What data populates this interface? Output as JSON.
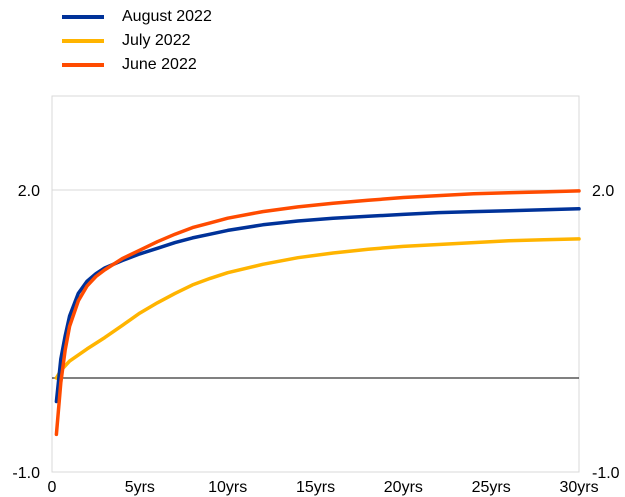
{
  "chart_data": {
    "type": "line",
    "title": "",
    "xlabel": "",
    "ylabel": "",
    "xlim": [
      0,
      30
    ],
    "ylim": [
      -1.0,
      3.0
    ],
    "x_tick_labels": [
      {
        "x": 0,
        "label": "0"
      },
      {
        "x": 5,
        "label": "5yrs"
      },
      {
        "x": 10,
        "label": "10yrs"
      },
      {
        "x": 15,
        "label": "15yrs"
      },
      {
        "x": 20,
        "label": "20yrs"
      },
      {
        "x": 25,
        "label": "25yrs"
      },
      {
        "x": 30,
        "label": "30yrs"
      }
    ],
    "y_tick_labels": [
      {
        "y": 2.0,
        "label": "2.0"
      },
      {
        "y": -1.0,
        "label": "-1.0"
      }
    ],
    "zero_line": 0,
    "legend_position": "top-left",
    "series": [
      {
        "name": "August 2022",
        "color": "#003299",
        "x": [
          0.25,
          0.5,
          0.75,
          1,
          1.5,
          2,
          2.5,
          3,
          4,
          5,
          6,
          7,
          8,
          9,
          10,
          12,
          14,
          16,
          18,
          20,
          22,
          24,
          26,
          28,
          30
        ],
        "y": [
          -0.25,
          0.2,
          0.45,
          0.66,
          0.9,
          1.03,
          1.11,
          1.17,
          1.25,
          1.32,
          1.38,
          1.44,
          1.49,
          1.53,
          1.57,
          1.63,
          1.67,
          1.7,
          1.72,
          1.74,
          1.76,
          1.77,
          1.78,
          1.79,
          1.8
        ]
      },
      {
        "name": "July 2022",
        "color": "#FFB400",
        "x": [
          0.25,
          0.5,
          1,
          2,
          3,
          4,
          5,
          6,
          7,
          8,
          9,
          10,
          12,
          14,
          16,
          18,
          20,
          22,
          24,
          26,
          28,
          30
        ],
        "y": [
          0.0,
          0.08,
          0.18,
          0.31,
          0.43,
          0.56,
          0.69,
          0.8,
          0.9,
          0.99,
          1.06,
          1.12,
          1.21,
          1.28,
          1.33,
          1.37,
          1.4,
          1.42,
          1.44,
          1.46,
          1.47,
          1.48
        ]
      },
      {
        "name": "June 2022",
        "color": "#FF4B00",
        "x": [
          0.25,
          0.5,
          0.75,
          1,
          1.5,
          2,
          2.5,
          3,
          4,
          5,
          6,
          7,
          8,
          9,
          10,
          12,
          14,
          16,
          18,
          20,
          22,
          24,
          26,
          28,
          30
        ],
        "y": [
          -0.6,
          -0.05,
          0.3,
          0.55,
          0.82,
          0.98,
          1.08,
          1.15,
          1.27,
          1.36,
          1.45,
          1.53,
          1.6,
          1.65,
          1.7,
          1.77,
          1.82,
          1.86,
          1.89,
          1.92,
          1.94,
          1.96,
          1.97,
          1.98,
          1.99
        ]
      }
    ]
  }
}
